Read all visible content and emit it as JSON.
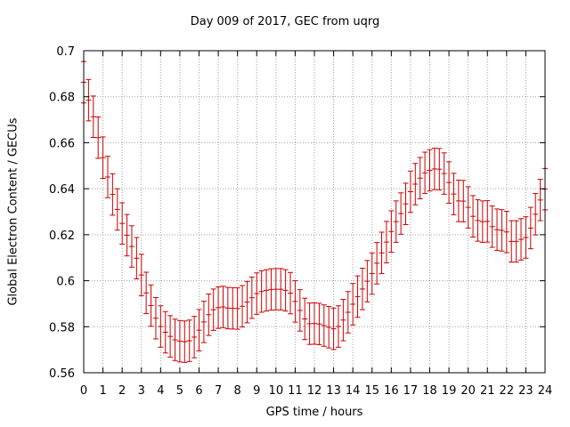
{
  "chart_data": {
    "type": "line",
    "title": "Day 009 of 2017, GEC from uqrg",
    "xlabel": "GPS time / hours",
    "ylabel": "Global Electron Content / GECUs",
    "xlim": [
      0,
      24
    ],
    "ylim": [
      0.56,
      0.7
    ],
    "xticks": [
      0,
      1,
      2,
      3,
      4,
      5,
      6,
      7,
      8,
      9,
      10,
      11,
      12,
      13,
      14,
      15,
      16,
      17,
      18,
      19,
      20,
      21,
      22,
      23,
      24
    ],
    "yticks": [
      0.56,
      0.58,
      0.6,
      0.62,
      0.64,
      0.66,
      0.68,
      0.7
    ],
    "ytick_labels": [
      "0.56",
      "0.58",
      "0.6",
      "0.62",
      "0.64",
      "0.66",
      "0.68",
      "0.7"
    ],
    "grid": true,
    "error_bars": true,
    "color": "#cc0000",
    "x": [
      0,
      0.25,
      0.5,
      0.75,
      1,
      1.25,
      1.5,
      1.75,
      2,
      2.25,
      2.5,
      2.75,
      3,
      3.25,
      3.5,
      3.75,
      4,
      4.25,
      4.5,
      4.75,
      5,
      5.25,
      5.5,
      5.75,
      6,
      6.25,
      6.5,
      6.75,
      7,
      7.25,
      7.5,
      7.75,
      8,
      8.25,
      8.5,
      8.75,
      9,
      9.25,
      9.5,
      9.75,
      10,
      10.25,
      10.5,
      10.75,
      11,
      11.25,
      11.5,
      11.75,
      12,
      12.25,
      12.5,
      12.75,
      13,
      13.25,
      13.5,
      13.75,
      14,
      14.25,
      14.5,
      14.75,
      15,
      15.25,
      15.5,
      15.75,
      16,
      16.25,
      16.5,
      16.75,
      17,
      17.25,
      17.5,
      17.75,
      18,
      18.25,
      18.5,
      18.75,
      19,
      19.25,
      19.5,
      19.75,
      20,
      20.25,
      20.5,
      20.75,
      21,
      21.25,
      21.5,
      21.75,
      22,
      22.25,
      22.5,
      22.75,
      23,
      23.25,
      23.5,
      23.75,
      24
    ],
    "y": [
      0.6863,
      0.6785,
      0.6713,
      0.6622,
      0.6535,
      0.6451,
      0.6375,
      0.631,
      0.6249,
      0.6198,
      0.6149,
      0.6098,
      0.6025,
      0.5947,
      0.5892,
      0.5837,
      0.5801,
      0.5776,
      0.5758,
      0.5743,
      0.5737,
      0.5735,
      0.5739,
      0.5755,
      0.5785,
      0.5821,
      0.5852,
      0.5874,
      0.5883,
      0.5886,
      0.5881,
      0.588,
      0.5879,
      0.5889,
      0.5907,
      0.5926,
      0.5944,
      0.5953,
      0.5958,
      0.5962,
      0.5963,
      0.5963,
      0.5958,
      0.5946,
      0.591,
      0.5871,
      0.5834,
      0.5813,
      0.5814,
      0.5812,
      0.5805,
      0.5798,
      0.5791,
      0.5801,
      0.5829,
      0.5863,
      0.5898,
      0.5931,
      0.5964,
      0.5998,
      0.6031,
      0.6076,
      0.6121,
      0.6168,
      0.6214,
      0.6257,
      0.6292,
      0.6334,
      0.6387,
      0.642,
      0.6446,
      0.6469,
      0.648,
      0.6486,
      0.6485,
      0.6466,
      0.6427,
      0.6377,
      0.6347,
      0.6346,
      0.6319,
      0.628,
      0.6262,
      0.6257,
      0.6258,
      0.6235,
      0.6222,
      0.6219,
      0.6212,
      0.6171,
      0.6171,
      0.618,
      0.6188,
      0.6229,
      0.6289,
      0.6351,
      0.6398
    ],
    "yerr": 0.009
  }
}
